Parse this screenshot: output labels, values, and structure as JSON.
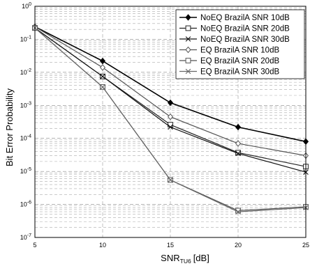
{
  "chart_data": {
    "type": "line",
    "xlabel_main": "SNR",
    "xlabel_sub": "TU6",
    "xlabel_unit": "[dB]",
    "ylabel": "Bit Error Probability",
    "xlim": [
      5,
      25
    ],
    "ylim": [
      1e-07,
      1
    ],
    "yscale": "log",
    "grid": true,
    "legend_position": "top-right",
    "x_ticks": [
      "5",
      "10",
      "15",
      "20",
      "25"
    ],
    "y_ticks": [
      {
        "base": "10",
        "exp": "0"
      },
      {
        "base": "10",
        "exp": "-1"
      },
      {
        "base": "10",
        "exp": "-2"
      },
      {
        "base": "10",
        "exp": "-3"
      },
      {
        "base": "10",
        "exp": "-4"
      },
      {
        "base": "10",
        "exp": "-5"
      },
      {
        "base": "10",
        "exp": "-6"
      },
      {
        "base": "10",
        "exp": "-7"
      }
    ],
    "x": [
      5,
      10,
      15,
      20,
      25
    ],
    "series": [
      {
        "name": "NoEQ BrazilA SNR 10dB",
        "marker": "diamond-filled",
        "color": "#000000",
        "values": [
          0.24,
          0.022,
          0.0012,
          0.00022,
          8e-05
        ]
      },
      {
        "name": "NoEQ BrazilA SNR 20dB",
        "marker": "square-open",
        "color": "#222222",
        "values": [
          0.22,
          0.0075,
          0.00026,
          3.7e-05,
          1.4e-05
        ]
      },
      {
        "name": "NoEQ BrazilA SNR 30dB",
        "marker": "x",
        "color": "#111111",
        "values": [
          0.22,
          0.0075,
          0.00022,
          3.5e-05,
          9.5e-06
        ]
      },
      {
        "name": "EQ BrazilA SNR 10dB",
        "marker": "diamond-open",
        "color": "#555555",
        "values": [
          0.24,
          0.014,
          0.00045,
          7e-05,
          3e-05
        ]
      },
      {
        "name": "EQ BrazilA SNR 20dB",
        "marker": "square-open",
        "color": "#555555",
        "values": [
          0.22,
          0.0036,
          5.5e-06,
          6.5e-07,
          8.5e-07
        ]
      },
      {
        "name": "EQ BrazilA SNR 30dB",
        "marker": "x",
        "color": "#666666",
        "values": [
          0.22,
          0.0036,
          5.5e-06,
          6e-07,
          8e-07
        ]
      }
    ]
  }
}
